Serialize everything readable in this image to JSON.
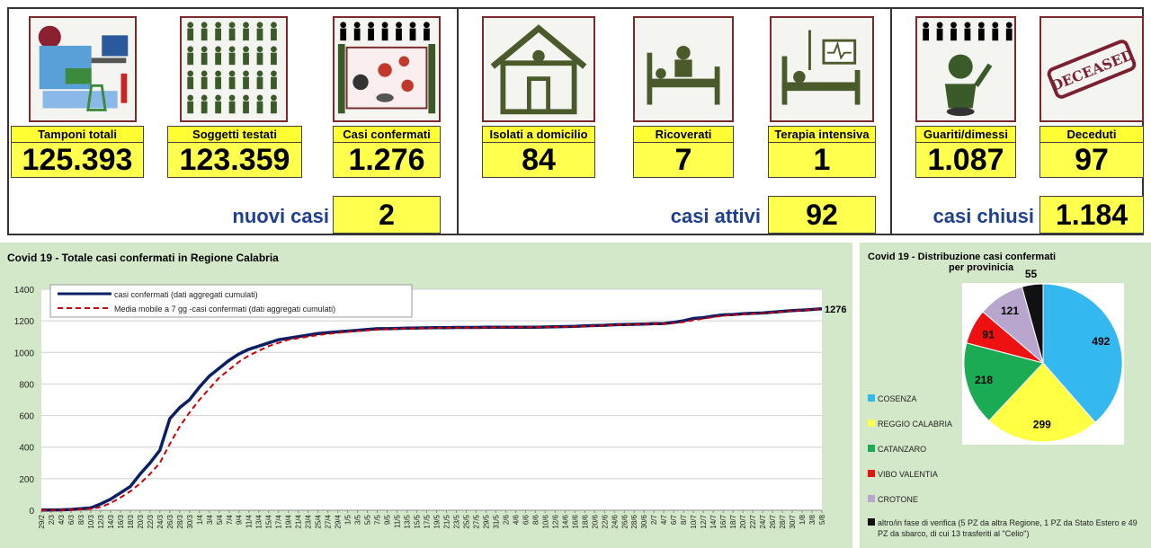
{
  "stats": {
    "tamponi": {
      "label": "Tamponi totali",
      "value": "125.393"
    },
    "soggetti": {
      "label": "Soggetti testati",
      "value": "123.359"
    },
    "confermati": {
      "label": "Casi confermati",
      "value": "1.276"
    },
    "isolati": {
      "label": "Isolati a domicilio",
      "value": "84"
    },
    "ricoverati": {
      "label": "Ricoverati",
      "value": "7"
    },
    "terapia": {
      "label": "Terapia intensiva",
      "value": "1"
    },
    "guariti": {
      "label": "Guariti/dimessi",
      "value": "1.087"
    },
    "deceduti": {
      "label": "Deceduti",
      "value": "97"
    }
  },
  "summary": {
    "nuovi_label": "nuovi casi",
    "nuovi_value": "2",
    "attivi_label": "casi attivi",
    "attivi_value": "92",
    "chiusi_label": "casi chiusi",
    "chiusi_value": "1.184"
  },
  "deceased_stamp": "DECEASED",
  "colors": {
    "label_bg": "#ffff33",
    "summary_text": "#1f3f8f",
    "panel_bg": "#d3e8c9",
    "line_main": "#0b1f66",
    "line_avg": "#cc0000"
  },
  "chart_data": [
    {
      "type": "line",
      "title": "Covid 19 - Totale casi confermati in Regione Calabria",
      "x": [
        "29/2",
        "2/3",
        "4/3",
        "6/3",
        "8/3",
        "10/3",
        "12/3",
        "14/3",
        "16/3",
        "18/3",
        "20/3",
        "22/3",
        "24/3",
        "26/3",
        "28/3",
        "30/3",
        "1/4",
        "3/4",
        "5/4",
        "7/4",
        "9/4",
        "11/4",
        "13/4",
        "15/4",
        "17/4",
        "19/4",
        "21/4",
        "23/4",
        "25/4",
        "27/4",
        "29/4",
        "1/5",
        "3/5",
        "5/5",
        "7/5",
        "9/5",
        "11/5",
        "13/5",
        "15/5",
        "17/5",
        "19/5",
        "21/5",
        "23/5",
        "25/5",
        "27/5",
        "29/5",
        "31/5",
        "2/6",
        "4/6",
        "6/6",
        "8/6",
        "10/6",
        "12/6",
        "14/6",
        "16/6",
        "18/6",
        "20/6",
        "22/6",
        "24/6",
        "26/6",
        "28/6",
        "30/6",
        "2/7",
        "4/7",
        "6/7",
        "8/7",
        "10/7",
        "12/7",
        "14/7",
        "16/7",
        "18/7",
        "20/7",
        "22/7",
        "24/7",
        "26/7",
        "28/7",
        "30/7",
        "1/8",
        "3/8",
        "5/8"
      ],
      "ylim": [
        0,
        1400
      ],
      "yticks": [
        0,
        200,
        400,
        600,
        800,
        1000,
        1200,
        1400
      ],
      "grid": true,
      "legend_position": "top-left",
      "end_label": "1276",
      "series": [
        {
          "name": "casi confermati (dati aggregati cumulati)",
          "style": "solid",
          "values": [
            1,
            2,
            3,
            5,
            10,
            15,
            40,
            70,
            110,
            150,
            230,
            300,
            380,
            580,
            650,
            700,
            780,
            850,
            900,
            950,
            990,
            1020,
            1040,
            1060,
            1080,
            1090,
            1100,
            1110,
            1120,
            1125,
            1130,
            1135,
            1140,
            1145,
            1150,
            1150,
            1152,
            1154,
            1155,
            1156,
            1157,
            1157,
            1158,
            1158,
            1158,
            1159,
            1159,
            1160,
            1160,
            1160,
            1160,
            1161,
            1162,
            1164,
            1165,
            1168,
            1170,
            1172,
            1175,
            1177,
            1178,
            1180,
            1182,
            1183,
            1190,
            1200,
            1215,
            1220,
            1230,
            1238,
            1240,
            1245,
            1248,
            1250,
            1255,
            1260,
            1265,
            1268,
            1272,
            1276
          ]
        },
        {
          "name": "Media mobile a 7 gg -casi confermati (dati aggregati cumulati)",
          "style": "dashed",
          "values": [
            0,
            1,
            2,
            3,
            6,
            10,
            20,
            45,
            80,
            120,
            170,
            230,
            300,
            420,
            530,
            620,
            700,
            770,
            840,
            890,
            940,
            980,
            1010,
            1040,
            1060,
            1080,
            1090,
            1100,
            1110,
            1118,
            1124,
            1130,
            1136,
            1140,
            1144,
            1147,
            1150,
            1152,
            1153,
            1154,
            1155,
            1156,
            1157,
            1157,
            1157,
            1158,
            1158,
            1159,
            1159,
            1159,
            1160,
            1160,
            1161,
            1162,
            1164,
            1166,
            1168,
            1170,
            1172,
            1175,
            1177,
            1179,
            1181,
            1182,
            1186,
            1192,
            1204,
            1214,
            1224,
            1232,
            1238,
            1242,
            1246,
            1249,
            1253,
            1258,
            1263,
            1267,
            1270,
            1274
          ]
        }
      ]
    },
    {
      "type": "pie",
      "title": "Covid 19 - Distribuzione casi confermati",
      "subtitle": "per provinicia",
      "slices": [
        {
          "name": "COSENZA",
          "value": 492,
          "color": "#33b8ef"
        },
        {
          "name": "REGGIO CALABRIA",
          "value": 299,
          "color": "#ffff44"
        },
        {
          "name": "CATANZARO",
          "value": 218,
          "color": "#1bab55"
        },
        {
          "name": "VIBO VALENTIA",
          "value": 91,
          "color": "#ee1111"
        },
        {
          "name": "CROTONE",
          "value": 121,
          "color": "#b9a6cf"
        },
        {
          "name": "altro/in fase di verifica (5 PZ da altra Regione, 1 PZ da Stato Estero e 49 PZ da sbarco, di cui 13 trasferiti al \"Celio\")",
          "value": 55,
          "color": "#111111"
        }
      ]
    }
  ]
}
